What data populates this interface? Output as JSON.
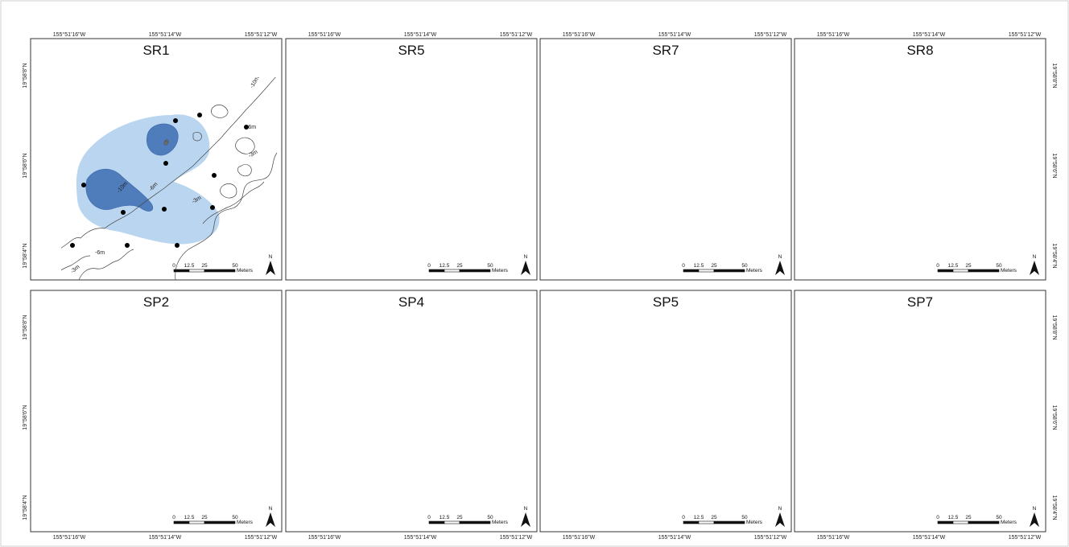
{
  "figure": {
    "colors": {
      "blue_light": "#bad5ef",
      "blue_dark": "#4f7dbc",
      "blue_dark_stroke": "#3b67a8",
      "orange_light": "#f8e0b7",
      "orange_dark": "#eeb08d",
      "site_point": "#000000",
      "detection_point": "#6a6a6a",
      "contour": "#444444"
    },
    "lon_labels": [
      "155°51'16\"W",
      "155°51'14\"W",
      "155°51'12\"W"
    ],
    "lat_labels": [
      "19°58'8\"N",
      "19°58'6\"N",
      "19°58'4\"N"
    ],
    "contour_labels": [
      "-10m",
      "-6m",
      "-3m"
    ],
    "scale_bar": {
      "ticks": [
        "0",
        "12.5",
        "25",
        "50"
      ],
      "unit": "Meters"
    },
    "north_label": "N",
    "panels": [
      {
        "id": "SR1",
        "title": "SR1",
        "group": "SR",
        "top_labels": true,
        "bottom_labels": false,
        "left_labels": true,
        "right_labels": false
      },
      {
        "id": "SR5",
        "title": "SR5",
        "group": "SR",
        "top_labels": true,
        "bottom_labels": false,
        "left_labels": false,
        "right_labels": false
      },
      {
        "id": "SR7",
        "title": "SR7",
        "group": "SR",
        "top_labels": true,
        "bottom_labels": false,
        "left_labels": false,
        "right_labels": false
      },
      {
        "id": "SR8",
        "title": "SR8",
        "group": "SR",
        "top_labels": true,
        "bottom_labels": false,
        "left_labels": false,
        "right_labels": true
      },
      {
        "id": "SP2",
        "title": "SP2",
        "group": "SP",
        "top_labels": false,
        "bottom_labels": true,
        "left_labels": true,
        "right_labels": false
      },
      {
        "id": "SP4",
        "title": "SP4",
        "group": "SP",
        "top_labels": false,
        "bottom_labels": true,
        "left_labels": false,
        "right_labels": false
      },
      {
        "id": "SP5",
        "title": "SP5",
        "group": "SP",
        "top_labels": false,
        "bottom_labels": true,
        "left_labels": false,
        "right_labels": false
      },
      {
        "id": "SP7",
        "title": "SP7",
        "group": "SP",
        "top_labels": false,
        "bottom_labels": true,
        "left_labels": false,
        "right_labels": true
      }
    ]
  }
}
